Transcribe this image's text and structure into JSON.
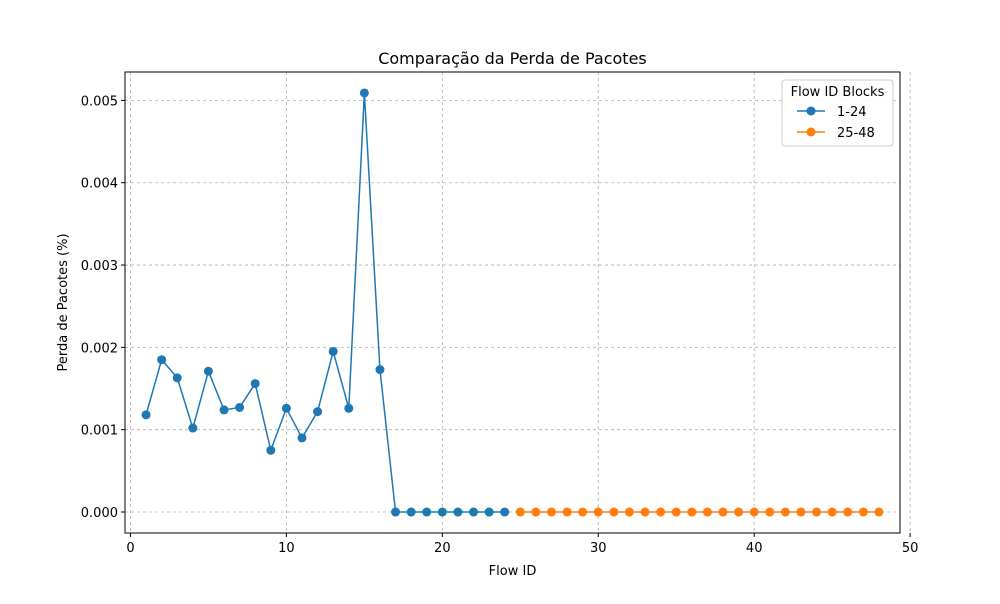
{
  "chart_data": {
    "type": "line",
    "title": "Comparação da Perda de Pacotes",
    "xlabel": "Flow ID",
    "ylabel": "Perda de Pacotes (%)",
    "xlim": [
      -0.35,
      49.35
    ],
    "ylim": [
      -0.000255,
      0.005345
    ],
    "x_ticks": [
      0,
      10,
      20,
      30,
      40,
      50
    ],
    "y_ticks": [
      0.0,
      0.001,
      0.002,
      0.003,
      0.004,
      0.005
    ],
    "x_tick_labels": [
      "0",
      "10",
      "20",
      "30",
      "40",
      "50"
    ],
    "y_tick_labels": [
      "0.000",
      "0.001",
      "0.002",
      "0.003",
      "0.004",
      "0.005"
    ],
    "grid": true,
    "legend": {
      "title": "Flow ID Blocks",
      "position": "top-right"
    },
    "series": [
      {
        "name": "1-24",
        "color": "#1f77b4",
        "x": [
          1,
          2,
          3,
          4,
          5,
          6,
          7,
          8,
          9,
          10,
          11,
          12,
          13,
          14,
          15,
          16,
          17,
          18,
          19,
          20,
          21,
          22,
          23,
          24
        ],
        "y": [
          0.00118,
          0.00185,
          0.00163,
          0.00102,
          0.00171,
          0.00124,
          0.00127,
          0.00156,
          0.00075,
          0.00126,
          0.0009,
          0.00122,
          0.00195,
          0.00126,
          0.00509,
          0.00173,
          0,
          0,
          0,
          0,
          0,
          0,
          0,
          0
        ]
      },
      {
        "name": "25-48",
        "color": "#ff7f0e",
        "x": [
          25,
          26,
          27,
          28,
          29,
          30,
          31,
          32,
          33,
          34,
          35,
          36,
          37,
          38,
          39,
          40,
          41,
          42,
          43,
          44,
          45,
          46,
          47,
          48
        ],
        "y": [
          0,
          0,
          0,
          0,
          0,
          0,
          0,
          0,
          0,
          0,
          0,
          0,
          0,
          0,
          0,
          0,
          0,
          0,
          0,
          0,
          0,
          0,
          0,
          0
        ]
      }
    ]
  }
}
